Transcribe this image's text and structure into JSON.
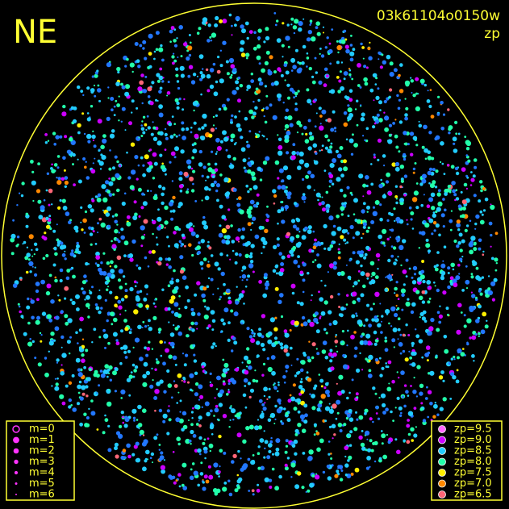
{
  "header": {
    "label": "NE",
    "id": "03k61104o0150w",
    "mode": "zp"
  },
  "magnitude_legend": [
    "m=0",
    "m=1",
    "m=2",
    "m=3",
    "m=4",
    "m=5",
    "m=6"
  ],
  "zp_legend": [
    {
      "label": "zp=9.5",
      "color": "#ff66ff"
    },
    {
      "label": "zp=9.0",
      "color": "#cc00ff"
    },
    {
      "label": "zp=8.5",
      "color": "#22ccff"
    },
    {
      "label": "zp=8.0",
      "color": "#22ffaa"
    },
    {
      "label": "zp=7.5",
      "color": "#ffee00"
    },
    {
      "label": "zp=7.0",
      "color": "#ff8800"
    },
    {
      "label": "zp=6.5",
      "color": "#ff6677"
    }
  ]
}
